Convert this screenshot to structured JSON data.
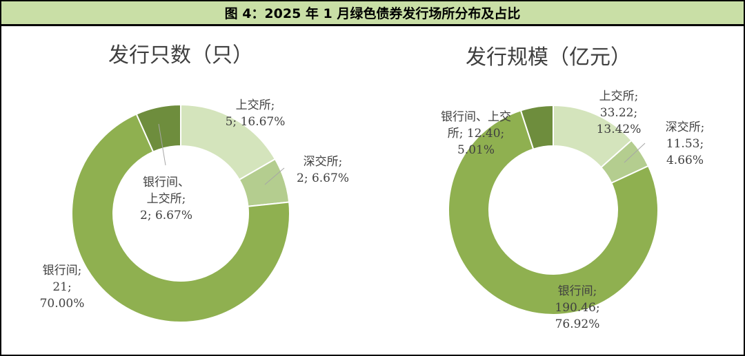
{
  "header": {
    "title": "图 4：2025 年 1 月绿色债券发行场所分布及占比"
  },
  "chart_data": [
    {
      "type": "donut",
      "title": "发行只数（只）",
      "colors": [
        "#d4e4bc",
        "#b4cd8f",
        "#8fb050",
        "#6e8d3d"
      ],
      "slices": [
        {
          "name": "上交所",
          "value": 5,
          "percent": "16.67%",
          "label_lines": [
            "上交所;",
            "5; 16.67%"
          ]
        },
        {
          "name": "深交所",
          "value": 2,
          "percent": "6.67%",
          "label_lines": [
            "深交所;",
            "2; 6.67%"
          ]
        },
        {
          "name": "银行间",
          "value": 21,
          "percent": "70.00%",
          "label_lines": [
            "银行间;",
            "21;",
            "70.00%"
          ]
        },
        {
          "name": "银行间、上交所",
          "value": 2,
          "percent": "6.67%",
          "label_lines": [
            "银行间、",
            "上交所;",
            "2; 6.67%"
          ]
        }
      ]
    },
    {
      "type": "donut",
      "title": "发行规模（亿元）",
      "colors": [
        "#d4e4bc",
        "#b4cd8f",
        "#8fb050",
        "#6e8d3d"
      ],
      "slices": [
        {
          "name": "上交所",
          "value": 33.22,
          "percent": "13.42%",
          "label_lines": [
            "上交所;",
            "33.22;",
            "13.42%"
          ]
        },
        {
          "name": "深交所",
          "value": 11.53,
          "percent": "4.66%",
          "label_lines": [
            "深交所;",
            "11.53;",
            "4.66%"
          ]
        },
        {
          "name": "银行间",
          "value": 190.46,
          "percent": "76.92%",
          "label_lines": [
            "银行间;",
            "190.46;",
            "76.92%"
          ]
        },
        {
          "name": "银行间、上交所",
          "value": 12.4,
          "percent": "5.01%",
          "label_lines": [
            "银行间、上交",
            "所; 12.40;",
            "5.01%"
          ]
        }
      ]
    }
  ]
}
